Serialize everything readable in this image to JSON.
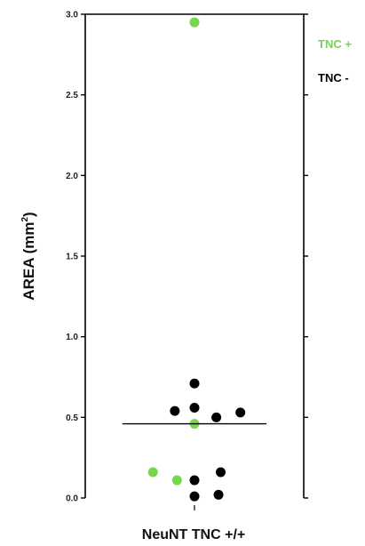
{
  "chart_data": {
    "type": "scatter",
    "title": "",
    "xlabel": "NeuNT TNC +/+",
    "ylabel_main": "AREA (mm",
    "ylabel_sup": "2",
    "ylabel_close": ")",
    "ylim": [
      0,
      3.0
    ],
    "yticks": [
      "0.0",
      "0.5",
      "1.0",
      "1.5",
      "2.0",
      "2.5",
      "3.0"
    ],
    "ytick_values": [
      0,
      0.5,
      1.0,
      1.5,
      2.0,
      2.5,
      3.0
    ],
    "grid": false,
    "legend_position": "top-right",
    "mean_line": 0.46,
    "series": [
      {
        "name": "TNC +",
        "color": "#77d64a",
        "points": [
          {
            "x": 0.5,
            "y": 2.95
          },
          {
            "x": 0.5,
            "y": 0.46
          },
          {
            "x": 0.31,
            "y": 0.16
          },
          {
            "x": 0.42,
            "y": 0.11
          }
        ]
      },
      {
        "name": "TNC -",
        "color": "#000000",
        "points": [
          {
            "x": 0.5,
            "y": 0.71
          },
          {
            "x": 0.41,
            "y": 0.54
          },
          {
            "x": 0.5,
            "y": 0.56
          },
          {
            "x": 0.6,
            "y": 0.5
          },
          {
            "x": 0.71,
            "y": 0.53
          },
          {
            "x": 0.62,
            "y": 0.16
          },
          {
            "x": 0.5,
            "y": 0.11
          },
          {
            "x": 0.61,
            "y": 0.02
          },
          {
            "x": 0.5,
            "y": 0.01
          }
        ]
      }
    ]
  }
}
